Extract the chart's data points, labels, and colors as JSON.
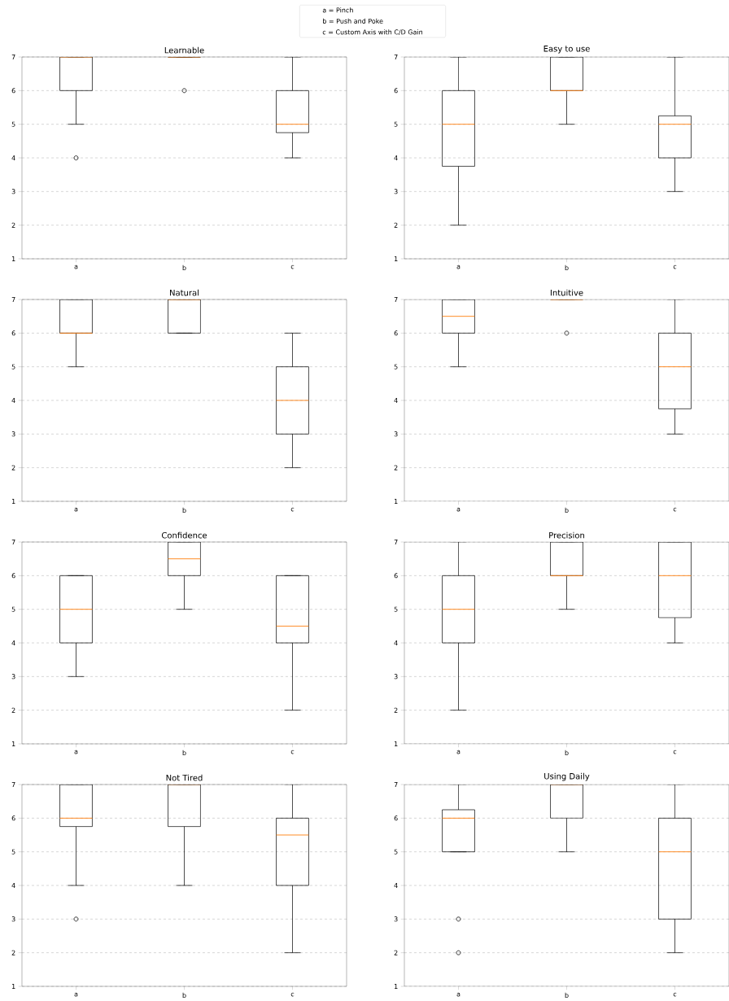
{
  "chart_data": [
    {
      "type": "box",
      "title": "Learnable",
      "categories": [
        "a",
        "b",
        "c"
      ],
      "color": "#000000",
      "ylim": [
        1,
        7
      ],
      "yticks": [
        1,
        2,
        3,
        4,
        5,
        6,
        7
      ],
      "grid": "y",
      "annotations": [
        "a = Pinch",
        "b = Push and Poke",
        "c = Custom Axis with C/D Gain"
      ],
      "boxes": [
        {
          "low": 5,
          "q1": 6,
          "median": 7,
          "q3": 7,
          "high": 7,
          "outliers": [
            4
          ]
        },
        {
          "low": 7,
          "q1": 7,
          "median": 7,
          "q3": 7,
          "high": 7,
          "outliers": [
            6
          ]
        },
        {
          "low": 4,
          "q1": 4.75,
          "median": 5,
          "q3": 6,
          "high": 7
        }
      ]
    },
    {
      "type": "box",
      "title": "Easy to use",
      "categories": [
        "a",
        "b",
        "c"
      ],
      "color": "#000000",
      "ylim": [
        1,
        7
      ],
      "yticks": [
        1,
        2,
        3,
        4,
        5,
        6,
        7
      ],
      "grid": "y",
      "boxes": [
        {
          "low": 2,
          "q1": 3.75,
          "median": 5,
          "q3": 6,
          "high": 7
        },
        {
          "low": 5,
          "q1": 6,
          "median": 6,
          "q3": 7,
          "high": 7
        },
        {
          "low": 3,
          "q1": 4,
          "median": 5,
          "q3": 5.25,
          "high": 7
        }
      ]
    },
    {
      "type": "box",
      "title": "Natural",
      "categories": [
        "a",
        "b",
        "c"
      ],
      "color": "#000000",
      "ylim": [
        1,
        7
      ],
      "yticks": [
        1,
        2,
        3,
        4,
        5,
        6,
        7
      ],
      "grid": "y",
      "boxes": [
        {
          "low": 5,
          "q1": 6,
          "median": 6,
          "q3": 7,
          "high": 7
        },
        {
          "low": 6,
          "q1": 6,
          "median": 7,
          "q3": 7,
          "high": 7
        },
        {
          "low": 2,
          "q1": 3,
          "median": 4,
          "q3": 5,
          "high": 6
        }
      ]
    },
    {
      "type": "box",
      "title": "Intuitive",
      "categories": [
        "a",
        "b",
        "c"
      ],
      "color": "#000000",
      "ylim": [
        1,
        7
      ],
      "yticks": [
        1,
        2,
        3,
        4,
        5,
        6,
        7
      ],
      "grid": "y",
      "boxes": [
        {
          "low": 5,
          "q1": 6,
          "median": 6.5,
          "q3": 7,
          "high": 7
        },
        {
          "low": 7,
          "q1": 7,
          "median": 7,
          "q3": 7,
          "high": 7,
          "outliers": [
            6
          ]
        },
        {
          "low": 3,
          "q1": 3.75,
          "median": 5,
          "q3": 6,
          "high": 7
        }
      ]
    },
    {
      "type": "box",
      "title": "Confidence",
      "categories": [
        "a",
        "b",
        "c"
      ],
      "color": "#000000",
      "ylim": [
        1,
        7
      ],
      "yticks": [
        1,
        2,
        3,
        4,
        5,
        6,
        7
      ],
      "grid": "y",
      "boxes": [
        {
          "low": 3,
          "q1": 4,
          "median": 5,
          "q3": 6,
          "high": 6
        },
        {
          "low": 5,
          "q1": 6,
          "median": 6.5,
          "q3": 7,
          "high": 7
        },
        {
          "low": 2,
          "q1": 4,
          "median": 4.5,
          "q3": 6,
          "high": 6
        }
      ]
    },
    {
      "type": "box",
      "title": "Precision",
      "categories": [
        "a",
        "b",
        "c"
      ],
      "color": "#000000",
      "ylim": [
        1,
        7
      ],
      "yticks": [
        1,
        2,
        3,
        4,
        5,
        6,
        7
      ],
      "grid": "y",
      "boxes": [
        {
          "low": 2,
          "q1": 4,
          "median": 5,
          "q3": 6,
          "high": 7
        },
        {
          "low": 5,
          "q1": 6,
          "median": 6,
          "q3": 7,
          "high": 7
        },
        {
          "low": 4,
          "q1": 4.75,
          "median": 6,
          "q3": 7,
          "high": 7
        }
      ]
    },
    {
      "type": "box",
      "title": "Not Tired",
      "categories": [
        "a",
        "b",
        "c"
      ],
      "color": "#000000",
      "ylim": [
        1,
        7
      ],
      "yticks": [
        1,
        2,
        3,
        4,
        5,
        6,
        7
      ],
      "grid": "y",
      "boxes": [
        {
          "low": 4,
          "q1": 5.75,
          "median": 6,
          "q3": 7,
          "high": 7,
          "outliers": [
            3
          ]
        },
        {
          "low": 4,
          "q1": 5.75,
          "median": 7,
          "q3": 7,
          "high": 7
        },
        {
          "low": 2,
          "q1": 4,
          "median": 5.5,
          "q3": 6,
          "high": 7
        }
      ]
    },
    {
      "type": "box",
      "title": "Using Daily",
      "categories": [
        "a",
        "b",
        "c"
      ],
      "color": "#000000",
      "ylim": [
        1,
        7
      ],
      "yticks": [
        1,
        2,
        3,
        4,
        5,
        6,
        7
      ],
      "grid": "y",
      "boxes": [
        {
          "low": 5,
          "q1": 5,
          "median": 6,
          "q3": 6.25,
          "high": 7,
          "outliers": [
            3,
            2
          ]
        },
        {
          "low": 5,
          "q1": 6,
          "median": 7,
          "q3": 7,
          "high": 7
        },
        {
          "low": 2,
          "q1": 3,
          "median": 5,
          "q3": 6,
          "high": 7
        }
      ]
    }
  ]
}
